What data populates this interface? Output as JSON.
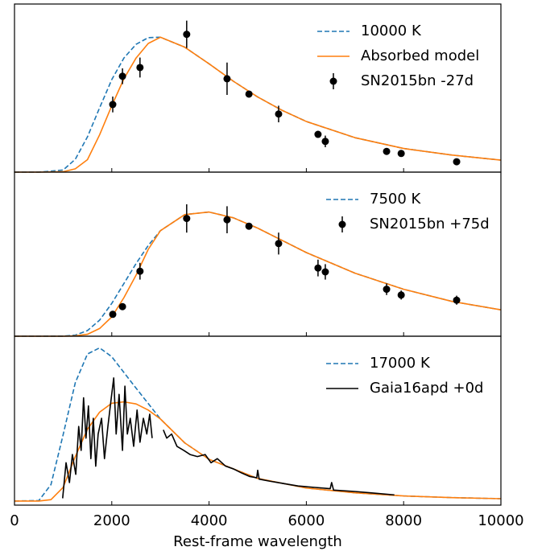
{
  "chart_data": [
    {
      "type": "line",
      "xlim": [
        0,
        10000
      ],
      "ylim": [
        0,
        4.05
      ],
      "legend": "upper right",
      "series": [
        {
          "name": "10000 K",
          "color": "#1f77b4",
          "style": "dashed",
          "x": [
            0,
            500,
            1000,
            1250,
            1500,
            1750,
            2000,
            2250,
            2500,
            2750,
            3000,
            3500,
            4000,
            4500,
            5000,
            5500,
            6000,
            7000,
            8000,
            9000,
            10000
          ],
          "values": [
            0,
            0,
            0.05,
            0.31,
            0.85,
            1.55,
            2.23,
            2.75,
            3.08,
            3.24,
            3.25,
            3.01,
            2.61,
            2.19,
            1.81,
            1.49,
            1.22,
            0.83,
            0.57,
            0.41,
            0.29
          ]
        },
        {
          "name": "Absorbed model",
          "color": "#ff7f0e",
          "style": "solid",
          "x": [
            0,
            500,
            1000,
            1250,
            1500,
            1750,
            2000,
            2250,
            2500,
            2750,
            3000,
            3500,
            4000,
            4500,
            5000,
            5500,
            6000,
            7000,
            8000,
            9000,
            10000
          ],
          "values": [
            0,
            0,
            0.01,
            0.08,
            0.3,
            0.9,
            1.6,
            2.25,
            2.75,
            3.1,
            3.25,
            3.01,
            2.61,
            2.19,
            1.81,
            1.49,
            1.22,
            0.83,
            0.57,
            0.41,
            0.29
          ]
        },
        {
          "name": "SN2015bn -27d",
          "color": "#000000",
          "style": "errorbar",
          "x": [
            2020,
            2220,
            2580,
            3540,
            4370,
            4820,
            5430,
            6240,
            6390,
            7650,
            7950,
            9090
          ],
          "values": [
            1.63,
            2.31,
            2.52,
            3.32,
            2.25,
            1.88,
            1.4,
            0.91,
            0.74,
            0.5,
            0.45,
            0.25
          ],
          "errors": [
            0.19,
            0.19,
            0.24,
            0.33,
            0.39,
            0.08,
            0.2,
            0.08,
            0.14,
            0.08,
            0.06,
            0.06
          ]
        }
      ]
    },
    {
      "type": "line",
      "xlim": [
        0,
        10000
      ],
      "ylim": [
        0,
        2.55
      ],
      "legend": "upper right",
      "series": [
        {
          "name": "7500 K",
          "color": "#1f77b4",
          "style": "dashed",
          "x": [
            0,
            500,
            1000,
            1250,
            1500,
            1750,
            2000,
            2250,
            2500,
            2750,
            3000,
            3500,
            4000,
            4500,
            5000,
            5500,
            6000,
            7000,
            8000,
            9000,
            10000
          ],
          "values": [
            0,
            0,
            0.001,
            0.017,
            0.087,
            0.25,
            0.51,
            0.82,
            1.13,
            1.41,
            1.64,
            1.89,
            1.93,
            1.84,
            1.68,
            1.49,
            1.3,
            0.98,
            0.73,
            0.54,
            0.41
          ]
        },
        {
          "color": "#ff7f0e",
          "style": "solid",
          "x": [
            0,
            500,
            1000,
            1250,
            1500,
            1750,
            2000,
            2250,
            2500,
            2750,
            3000,
            3500,
            4000,
            4500,
            5000,
            5500,
            6000,
            7000,
            8000,
            9000,
            10000
          ],
          "values": [
            0,
            0,
            0,
            0.005,
            0.03,
            0.12,
            0.3,
            0.6,
            0.95,
            1.35,
            1.64,
            1.89,
            1.93,
            1.84,
            1.68,
            1.49,
            1.3,
            0.98,
            0.73,
            0.54,
            0.41
          ]
        },
        {
          "name": "SN2015bn +75d",
          "color": "#000000",
          "style": "errorbar",
          "x": [
            2020,
            2220,
            2580,
            3540,
            4370,
            4820,
            5430,
            6240,
            6390,
            7650,
            7950,
            9090
          ],
          "values": [
            0.34,
            0.46,
            1.01,
            1.83,
            1.81,
            1.71,
            1.44,
            1.06,
            1.0,
            0.73,
            0.64,
            0.56
          ],
          "errors": [
            0.05,
            0.05,
            0.13,
            0.22,
            0.21,
            0.05,
            0.17,
            0.13,
            0.12,
            0.09,
            0.07,
            0.07
          ]
        }
      ]
    },
    {
      "type": "line",
      "xlim": [
        0,
        10000
      ],
      "ylim": [
        -0.06,
        2.41
      ],
      "legend": "upper right",
      "x_label": "Rest-frame wavelength",
      "xticks": [
        0,
        2000,
        4000,
        6000,
        8000,
        10000
      ],
      "series": [
        {
          "name": "17000 K",
          "color": "#1f77b4",
          "style": "dashed",
          "x": [
            0,
            500,
            750,
            1000,
            1250,
            1500,
            1750,
            2000,
            2500,
            3000,
            3500,
            4000,
            5000,
            6000,
            7000,
            8000,
            9000,
            10000
          ],
          "values": [
            0,
            0.0065,
            0.24,
            0.97,
            1.73,
            2.15,
            2.24,
            2.11,
            1.65,
            1.2,
            0.85,
            0.61,
            0.33,
            0.19,
            0.12,
            0.074,
            0.05,
            0.034
          ]
        },
        {
          "color": "#ff7f0e",
          "style": "solid",
          "x": [
            0,
            500,
            750,
            1000,
            1250,
            1500,
            1750,
            2000,
            2250,
            2500,
            2750,
            3000,
            3500,
            4000,
            5000,
            6000,
            7000,
            8000,
            9000,
            10000
          ],
          "values": [
            0,
            0,
            0.02,
            0.2,
            0.65,
            1.05,
            1.3,
            1.43,
            1.45,
            1.42,
            1.33,
            1.2,
            0.85,
            0.61,
            0.33,
            0.19,
            0.12,
            0.074,
            0.05,
            0.034
          ]
        },
        {
          "name": "Gaia16apd +0d",
          "color": "#000000",
          "style": "solid",
          "x": [
            990,
            1060,
            1130,
            1190,
            1260,
            1320,
            1370,
            1420,
            1470,
            1520,
            1570,
            1620,
            1670,
            1720,
            1790,
            1850,
            1920,
            1990,
            2040,
            2090,
            2150,
            2220,
            2270,
            2320,
            2380,
            2450,
            2520,
            2580,
            2650,
            2720,
            2780,
            2830,
            2940,
            3060,
            3130,
            3230,
            3340,
            3480,
            3610,
            3760,
            3920,
            4040,
            4170,
            4340,
            4500,
            4670,
            4830,
            4980,
            5000,
            5030,
            5250,
            5500,
            5830,
            6160,
            6490,
            6520,
            6560,
            6990,
            7320,
            7810
          ],
          "values": [
            0.04,
            0.56,
            0.27,
            0.68,
            0.39,
            1.09,
            0.74,
            1.51,
            0.92,
            1.39,
            0.62,
            1.21,
            0.51,
            0.98,
            1.21,
            0.62,
            1.09,
            1.51,
            1.8,
            0.98,
            1.56,
            0.74,
            1.68,
            0.98,
            1.21,
            0.8,
            1.33,
            0.86,
            1.21,
            0.98,
            1.27,
            0.92,
            null,
            1.04,
            0.92,
            0.98,
            0.8,
            0.74,
            0.68,
            0.65,
            0.68,
            0.56,
            0.62,
            0.51,
            0.47,
            0.41,
            0.36,
            0.34,
            0.45,
            0.32,
            0.29,
            0.26,
            0.22,
            0.2,
            0.18,
            0.27,
            0.16,
            0.14,
            0.12,
            0.09
          ]
        }
      ]
    }
  ]
}
